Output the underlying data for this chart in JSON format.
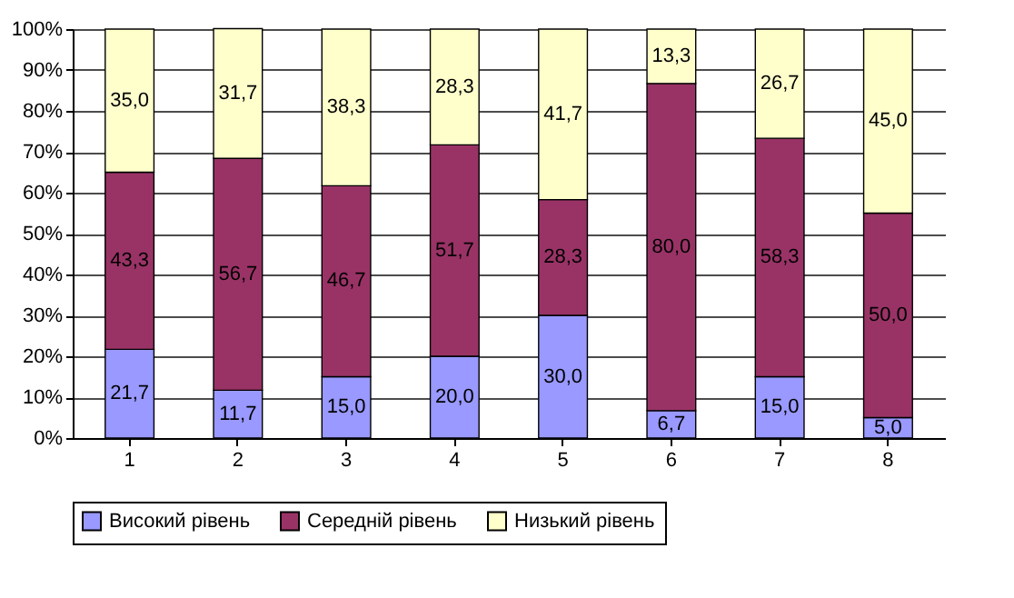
{
  "chart_data": {
    "type": "bar",
    "stacked": true,
    "categories": [
      "1",
      "2",
      "3",
      "4",
      "5",
      "6",
      "7",
      "8"
    ],
    "series": [
      {
        "name": "Високий рівень",
        "color": "#9999ff",
        "values": [
          21.7,
          11.7,
          15,
          20,
          30,
          6.7,
          15,
          5
        ],
        "value_labels": [
          "21,7",
          "11,7",
          "15,0",
          "20,0",
          "30,0",
          "6,7",
          "15,0",
          "5,0"
        ]
      },
      {
        "name": "Середній рівень",
        "color": "#993366",
        "values": [
          43.3,
          56.7,
          46.7,
          51.7,
          28.3,
          80,
          58.3,
          50
        ],
        "value_labels": [
          "43,3",
          "56,7",
          "46,7",
          "51,7",
          "28,3",
          "80,0",
          "58,3",
          "50,0"
        ]
      },
      {
        "name": "Низький рівень",
        "color": "#ffffcc",
        "values": [
          35,
          31.7,
          38.3,
          28.3,
          41.7,
          13.3,
          26.7,
          45
        ],
        "value_labels": [
          "35,0",
          "31,7",
          "38,3",
          "28,3",
          "41,7",
          "13,3",
          "26,7",
          "45,0"
        ]
      }
    ],
    "ylim": [
      0,
      100
    ],
    "yticks": [
      {
        "value": 0,
        "label": "0%"
      },
      {
        "value": 10,
        "label": "10%"
      },
      {
        "value": 20,
        "label": "20%"
      },
      {
        "value": 30,
        "label": "30%"
      },
      {
        "value": 40,
        "label": "40%"
      },
      {
        "value": 50,
        "label": "50%"
      },
      {
        "value": 60,
        "label": "60%"
      },
      {
        "value": 70,
        "label": "70%"
      },
      {
        "value": 80,
        "label": "80%"
      },
      {
        "value": 90,
        "label": "90%"
      },
      {
        "value": 100,
        "label": "100%"
      }
    ],
    "grid": "y",
    "legend": "bottom"
  }
}
